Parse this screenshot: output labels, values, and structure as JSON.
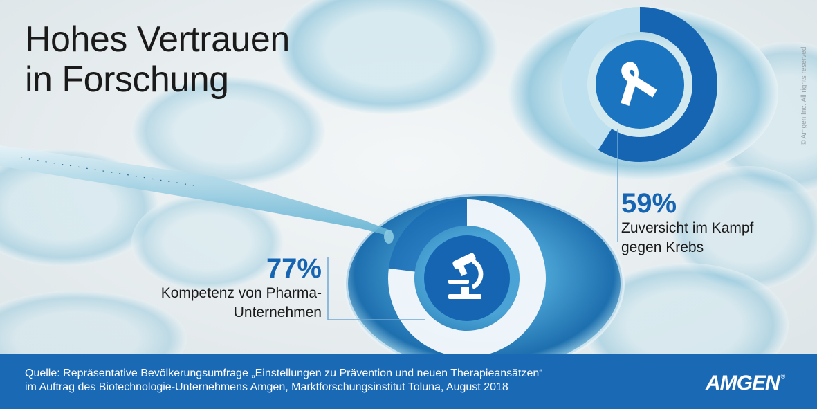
{
  "title": {
    "line1": "Hohes Vertrauen",
    "line2": "in Forschung"
  },
  "stats": [
    {
      "value": "77%",
      "label_line1": "Kompetenz von Pharma-",
      "label_line2": "Unternehmen",
      "icon": "microscope-icon",
      "fraction": 0.77
    },
    {
      "value": "59%",
      "label_line1": "Zuversicht im Kampf",
      "label_line2": "gegen Krebs",
      "icon": "cancer-ribbon-icon",
      "fraction": 0.59
    }
  ],
  "copyright": "© Amgen Inc. All rights reserved",
  "footer": {
    "source_line1": "Quelle: Repräsentative Bevölkerungsumfrage „Einstellungen zu Prävention und neuen Therapieansätzen“",
    "source_line2": "im Auftrag des Biotechnologie-Unternehmens Amgen, Marktforschungsinstitut Toluna, August 2018",
    "logo": "AMGEN",
    "logo_mark": "®"
  },
  "colors": {
    "accent": "#1565b3",
    "footer": "#1a69b5",
    "light_ring": "#ffffff",
    "dark_ring": "#1565b3",
    "light_blue": "#bfe0ee"
  }
}
